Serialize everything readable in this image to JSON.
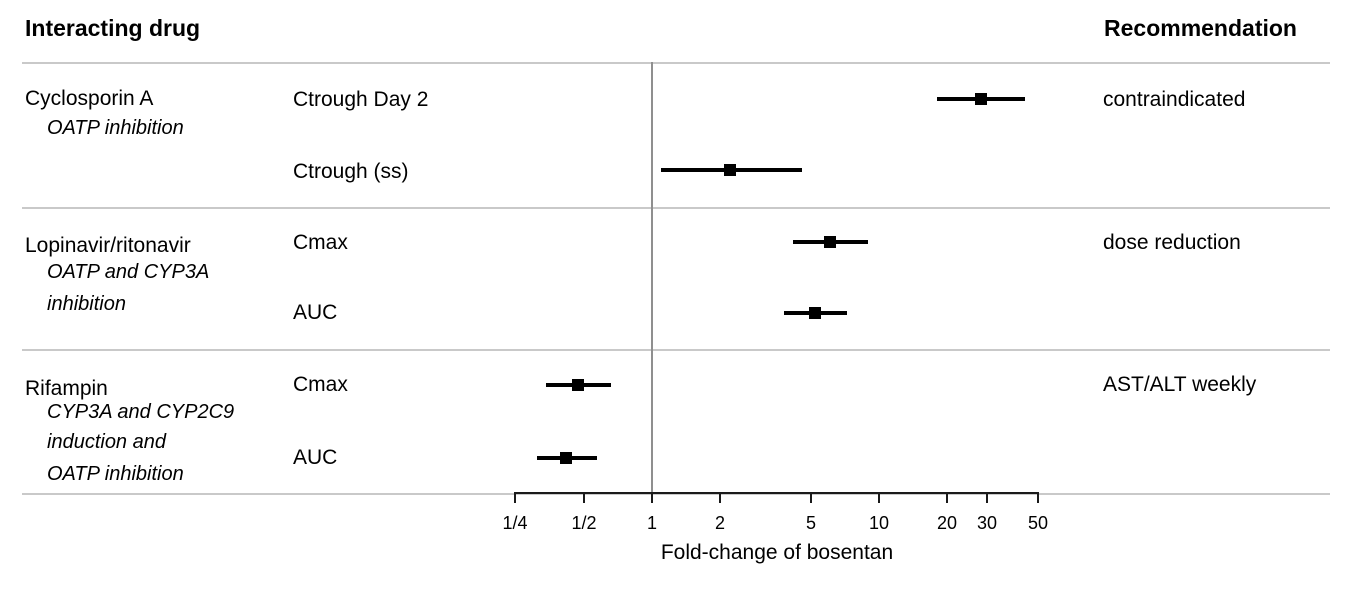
{
  "header": {
    "left_title": "Interacting drug",
    "right_title": "Recommendation"
  },
  "chart_data": {
    "type": "forest",
    "x_scale": "log10",
    "x_axis_label": "Fold-change of bosentan",
    "x_range": [
      0.25,
      50
    ],
    "reference_line_value": 1,
    "x_ticks": {
      "labels": [
        "1/4",
        "1/2",
        "1",
        "2",
        "5",
        "10",
        "20",
        "30",
        "50"
      ],
      "values": [
        0.25,
        0.5,
        1,
        2,
        5,
        10,
        20,
        30,
        50
      ]
    },
    "groups": [
      {
        "drug": "Cyclosporin A",
        "mechanism_lines": [
          "OATP inhibition"
        ],
        "recommendation": "contraindicated",
        "rows": [
          {
            "measure": "Ctrough Day 2",
            "estimate": 28,
            "ci_lower": 18,
            "ci_upper": 44
          },
          {
            "measure": "Ctrough (ss)",
            "estimate": 2.2,
            "ci_lower": 1.1,
            "ci_upper": 4.6
          }
        ]
      },
      {
        "drug": "Lopinavir/ritonavir",
        "mechanism_lines": [
          "OATP and CYP3A",
          "inhibition"
        ],
        "recommendation": "dose reduction",
        "rows": [
          {
            "measure": "Cmax",
            "estimate": 6.1,
            "ci_lower": 4.2,
            "ci_upper": 9.0
          },
          {
            "measure": "AUC",
            "estimate": 5.2,
            "ci_lower": 3.8,
            "ci_upper": 7.2
          }
        ]
      },
      {
        "drug": "Rifampin",
        "mechanism_lines": [
          "CYP3A and CYP2C9",
          "induction and",
          "OATP inhibition"
        ],
        "recommendation": "AST/ALT weekly",
        "rows": [
          {
            "measure": "Cmax",
            "estimate": 0.47,
            "ci_lower": 0.34,
            "ci_upper": 0.66
          },
          {
            "measure": "AUC",
            "estimate": 0.42,
            "ci_lower": 0.31,
            "ci_upper": 0.57
          }
        ]
      }
    ]
  },
  "colors": {
    "text": "#000000",
    "separator": "#c9c9c9",
    "reference_line": "#8f8f8f",
    "axis": "#1a1a1a",
    "marker": "#000000"
  }
}
